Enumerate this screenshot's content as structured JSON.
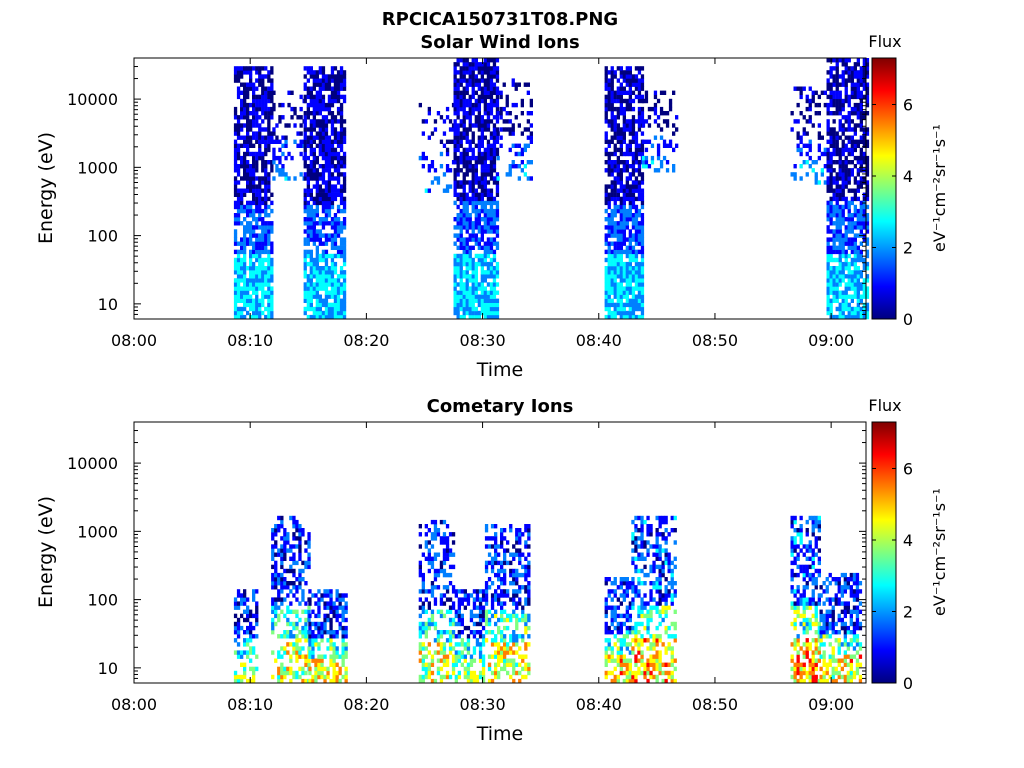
{
  "figure": {
    "filename_title": "RPCICA150731T08.PNG"
  },
  "colormap": [
    "#00007f",
    "#0000ff",
    "#007fff",
    "#00ffff",
    "#7fff7f",
    "#ffff00",
    "#ff7f00",
    "#ff0000",
    "#7f0000"
  ],
  "chart_data": [
    {
      "type": "heatmap",
      "title": "Solar Wind Ions",
      "xlabel": "Time",
      "ylabel": "Energy (eV)",
      "x_ticks": [
        "08:00",
        "08:10",
        "08:20",
        "08:30",
        "08:40",
        "08:50",
        "09:00"
      ],
      "x_tick_minutes": [
        0,
        10,
        20,
        30,
        40,
        50,
        60
      ],
      "x_range_minutes": [
        0,
        63
      ],
      "y_scale": "log",
      "y_ticks": [
        "10",
        "100",
        "1000",
        "10000"
      ],
      "y_tick_values": [
        10,
        100,
        1000,
        10000
      ],
      "y_range": [
        6,
        40000
      ],
      "colorbar": {
        "label_top": "Flux",
        "label_side": "eV⁻¹cm⁻²sr⁻¹s⁻¹",
        "ticks": [
          "0",
          "2",
          "4",
          "6"
        ],
        "tick_values": [
          0,
          2,
          4,
          6
        ],
        "range": [
          0,
          7.3
        ]
      },
      "bursts": [
        {
          "start": 8.6,
          "end": 11.9,
          "emin": 6,
          "emax": 30000,
          "density": 0.75,
          "fmax": 3.2
        },
        {
          "start": 11.9,
          "end": 14.6,
          "emin": 600,
          "emax": 12000,
          "density": 0.3,
          "fmax": 2.6
        },
        {
          "start": 14.6,
          "end": 18.2,
          "emin": 6,
          "emax": 30000,
          "density": 0.75,
          "fmax": 3.2
        },
        {
          "start": 24.5,
          "end": 27.5,
          "emin": 400,
          "emax": 8000,
          "density": 0.25,
          "fmax": 2.6
        },
        {
          "start": 27.5,
          "end": 31.2,
          "emin": 6,
          "emax": 35000,
          "density": 0.78,
          "fmax": 3.2
        },
        {
          "start": 31.2,
          "end": 34.3,
          "emin": 600,
          "emax": 20000,
          "density": 0.28,
          "fmax": 2.6
        },
        {
          "start": 40.5,
          "end": 43.7,
          "emin": 6,
          "emax": 30000,
          "density": 0.75,
          "fmax": 3.2
        },
        {
          "start": 43.7,
          "end": 46.6,
          "emin": 800,
          "emax": 12000,
          "density": 0.3,
          "fmax": 2.6
        },
        {
          "start": 56.5,
          "end": 59.6,
          "emin": 500,
          "emax": 15000,
          "density": 0.3,
          "fmax": 2.6
        },
        {
          "start": 59.6,
          "end": 63.0,
          "emin": 6,
          "emax": 35000,
          "density": 0.72,
          "fmax": 3.2
        }
      ]
    },
    {
      "type": "heatmap",
      "title": "Cometary Ions",
      "xlabel": "Time",
      "ylabel": "Energy (eV)",
      "x_ticks": [
        "08:00",
        "08:10",
        "08:20",
        "08:30",
        "08:40",
        "08:50",
        "09:00"
      ],
      "x_tick_minutes": [
        0,
        10,
        20,
        30,
        40,
        50,
        60
      ],
      "x_range_minutes": [
        0,
        63
      ],
      "y_scale": "log",
      "y_ticks": [
        "10",
        "100",
        "1000",
        "10000"
      ],
      "y_tick_values": [
        10,
        100,
        1000,
        10000
      ],
      "y_range": [
        6,
        40000
      ],
      "colorbar": {
        "label_top": "Flux",
        "label_side": "eV⁻¹cm⁻²sr⁻¹s⁻¹",
        "ticks": [
          "0",
          "2",
          "4",
          "6"
        ],
        "tick_values": [
          0,
          2,
          4,
          6
        ],
        "range": [
          0,
          7.3
        ]
      },
      "bursts": [
        {
          "start": 8.6,
          "end": 10.5,
          "emin": 6,
          "emax": 130,
          "density": 0.55,
          "fmax": 5.0
        },
        {
          "start": 11.8,
          "end": 15.0,
          "emin": 6,
          "emax": 1600,
          "density": 0.45,
          "fmax": 5.2
        },
        {
          "start": 15.0,
          "end": 18.2,
          "emin": 6,
          "emax": 130,
          "density": 0.6,
          "fmax": 5.6
        },
        {
          "start": 24.5,
          "end": 27.6,
          "emin": 6,
          "emax": 1300,
          "density": 0.45,
          "fmax": 5.2
        },
        {
          "start": 27.6,
          "end": 30.2,
          "emin": 6,
          "emax": 130,
          "density": 0.55,
          "fmax": 5.0
        },
        {
          "start": 30.2,
          "end": 34.0,
          "emin": 6,
          "emax": 1200,
          "density": 0.5,
          "fmax": 5.6
        },
        {
          "start": 40.5,
          "end": 42.8,
          "emin": 6,
          "emax": 200,
          "density": 0.6,
          "fmax": 5.8
        },
        {
          "start": 42.8,
          "end": 46.5,
          "emin": 6,
          "emax": 1500,
          "density": 0.55,
          "fmax": 6.0
        },
        {
          "start": 56.5,
          "end": 59.0,
          "emin": 6,
          "emax": 1600,
          "density": 0.55,
          "fmax": 6.4
        },
        {
          "start": 59.0,
          "end": 62.5,
          "emin": 6,
          "emax": 230,
          "density": 0.6,
          "fmax": 5.8
        }
      ]
    }
  ]
}
